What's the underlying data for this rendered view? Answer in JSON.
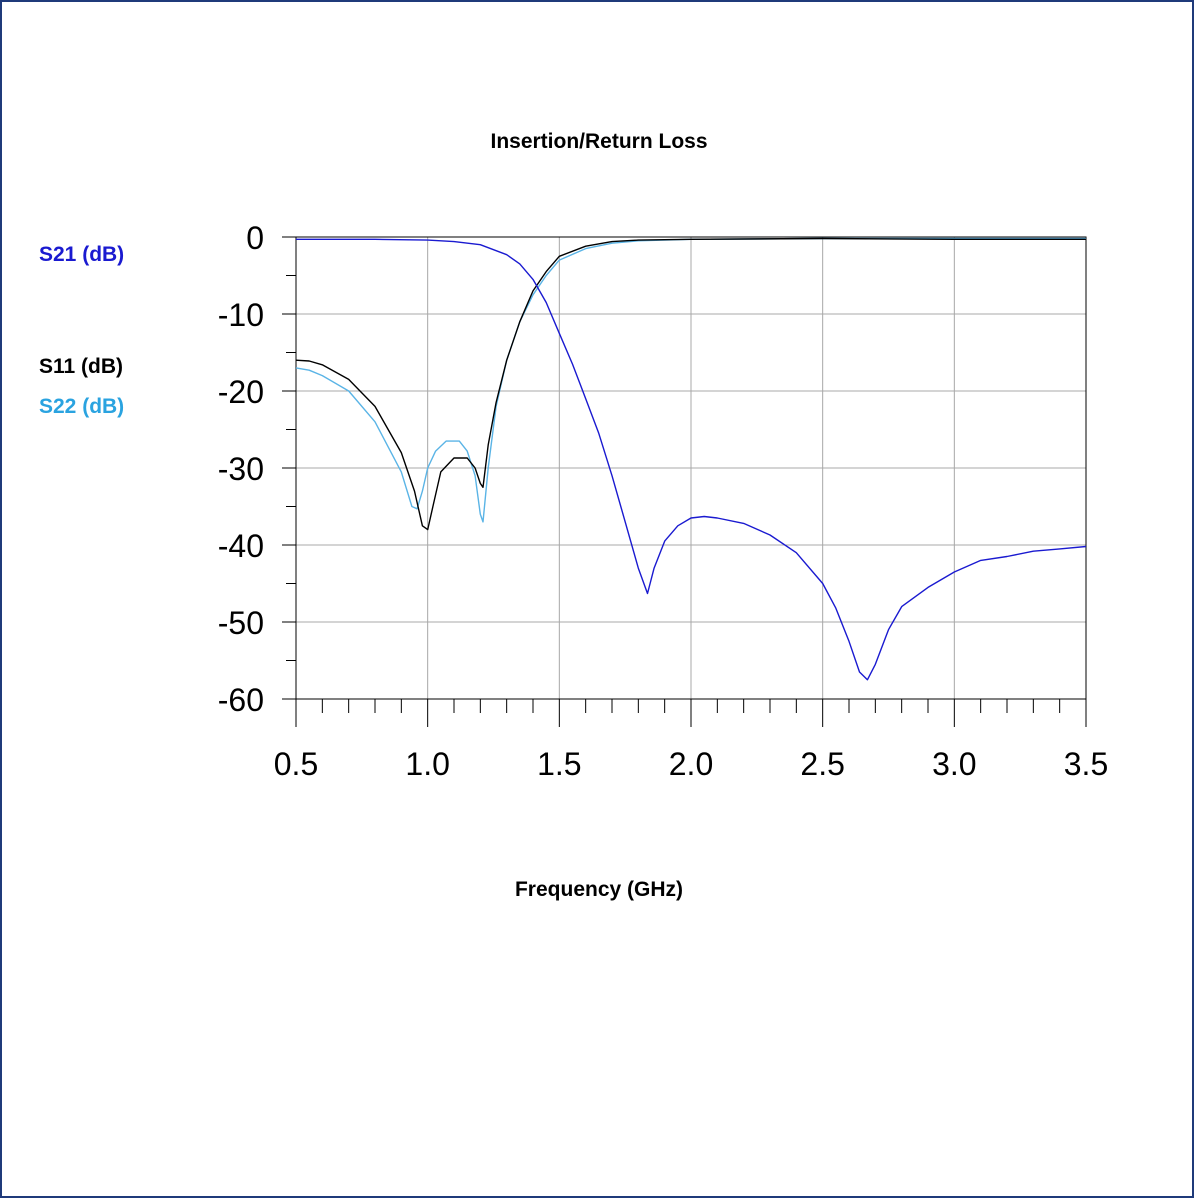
{
  "chart_data": {
    "type": "line",
    "title": "Insertion/Return Loss",
    "xlabel": "Frequency (GHz)",
    "ylabel": "",
    "xlim": [
      0.5,
      3.5
    ],
    "ylim": [
      -60,
      0
    ],
    "x_ticks": [
      "0.5",
      "1.0",
      "1.5",
      "2.0",
      "2.5",
      "3.0",
      "3.5"
    ],
    "x_tick_values": [
      0.5,
      1.0,
      1.5,
      2.0,
      2.5,
      3.0,
      3.5
    ],
    "y_ticks": [
      "0",
      "-10",
      "-20",
      "-30",
      "-40",
      "-50",
      "-60"
    ],
    "y_tick_values": [
      0,
      -10,
      -20,
      -30,
      -40,
      -50,
      -60
    ],
    "grid": true,
    "series": [
      {
        "name": "S21 (dB)",
        "color": "#1a1ad0",
        "points": [
          [
            0.5,
            -0.3
          ],
          [
            0.8,
            -0.3
          ],
          [
            1.0,
            -0.4
          ],
          [
            1.1,
            -0.6
          ],
          [
            1.2,
            -1.0
          ],
          [
            1.3,
            -2.3
          ],
          [
            1.35,
            -3.5
          ],
          [
            1.4,
            -5.5
          ],
          [
            1.45,
            -8.5
          ],
          [
            1.5,
            -12.5
          ],
          [
            1.55,
            -16.5
          ],
          [
            1.6,
            -21
          ],
          [
            1.65,
            -25.5
          ],
          [
            1.7,
            -31
          ],
          [
            1.75,
            -37
          ],
          [
            1.8,
            -43
          ],
          [
            1.835,
            -46.3
          ],
          [
            1.86,
            -43
          ],
          [
            1.9,
            -39.5
          ],
          [
            1.95,
            -37.5
          ],
          [
            2.0,
            -36.5
          ],
          [
            2.05,
            -36.3
          ],
          [
            2.1,
            -36.5
          ],
          [
            2.2,
            -37.2
          ],
          [
            2.3,
            -38.7
          ],
          [
            2.4,
            -41
          ],
          [
            2.5,
            -45
          ],
          [
            2.55,
            -48.2
          ],
          [
            2.6,
            -52.5
          ],
          [
            2.64,
            -56.5
          ],
          [
            2.67,
            -57.5
          ],
          [
            2.7,
            -55.5
          ],
          [
            2.75,
            -51
          ],
          [
            2.8,
            -48
          ],
          [
            2.9,
            -45.5
          ],
          [
            3.0,
            -43.5
          ],
          [
            3.1,
            -42
          ],
          [
            3.2,
            -41.5
          ],
          [
            3.3,
            -40.8
          ],
          [
            3.4,
            -40.5
          ],
          [
            3.5,
            -40.2
          ]
        ]
      },
      {
        "name": "S11 (dB)",
        "color": "#000000",
        "points": [
          [
            0.5,
            -16
          ],
          [
            0.55,
            -16.1
          ],
          [
            0.6,
            -16.6
          ],
          [
            0.7,
            -18.5
          ],
          [
            0.8,
            -22
          ],
          [
            0.9,
            -28
          ],
          [
            0.95,
            -33
          ],
          [
            0.98,
            -37.5
          ],
          [
            1.0,
            -38
          ],
          [
            1.02,
            -35
          ],
          [
            1.05,
            -30.5
          ],
          [
            1.1,
            -28.7
          ],
          [
            1.15,
            -28.7
          ],
          [
            1.18,
            -30
          ],
          [
            1.2,
            -32
          ],
          [
            1.21,
            -32.5
          ],
          [
            1.23,
            -27
          ],
          [
            1.26,
            -21.5
          ],
          [
            1.3,
            -16
          ],
          [
            1.35,
            -11
          ],
          [
            1.4,
            -7
          ],
          [
            1.45,
            -4.5
          ],
          [
            1.5,
            -2.5
          ],
          [
            1.6,
            -1.2
          ],
          [
            1.7,
            -0.6
          ],
          [
            1.8,
            -0.4
          ],
          [
            2.0,
            -0.3
          ],
          [
            2.5,
            -0.2
          ],
          [
            3.0,
            -0.3
          ],
          [
            3.5,
            -0.3
          ]
        ]
      },
      {
        "name": "S22 (dB)",
        "color": "#5ab4e6",
        "points": [
          [
            0.5,
            -17
          ],
          [
            0.55,
            -17.3
          ],
          [
            0.6,
            -18
          ],
          [
            0.7,
            -20
          ],
          [
            0.8,
            -24
          ],
          [
            0.9,
            -30.5
          ],
          [
            0.94,
            -35
          ],
          [
            0.96,
            -35.3
          ],
          [
            0.98,
            -33
          ],
          [
            1.0,
            -30
          ],
          [
            1.03,
            -27.8
          ],
          [
            1.07,
            -26.5
          ],
          [
            1.12,
            -26.5
          ],
          [
            1.15,
            -27.8
          ],
          [
            1.18,
            -31
          ],
          [
            1.2,
            -36
          ],
          [
            1.21,
            -37
          ],
          [
            1.23,
            -30
          ],
          [
            1.26,
            -22
          ],
          [
            1.3,
            -16
          ],
          [
            1.35,
            -11
          ],
          [
            1.4,
            -7.5
          ],
          [
            1.45,
            -5
          ],
          [
            1.5,
            -3
          ],
          [
            1.6,
            -1.5
          ],
          [
            1.7,
            -0.8
          ],
          [
            1.8,
            -0.5
          ],
          [
            2.0,
            -0.3
          ],
          [
            2.5,
            -0.2
          ],
          [
            3.0,
            -0.2
          ],
          [
            3.5,
            -0.2
          ]
        ]
      }
    ]
  },
  "legend": {
    "s21": "S21 (dB)",
    "s11": "S11 (dB)",
    "s22": "S22 (dB)"
  },
  "colors": {
    "frame_border": "#1f3a7a",
    "grid": "#a8a8a8",
    "s21_label": "#1a1ad0",
    "s11_label": "#000000",
    "s22_label": "#2aa3e0"
  }
}
